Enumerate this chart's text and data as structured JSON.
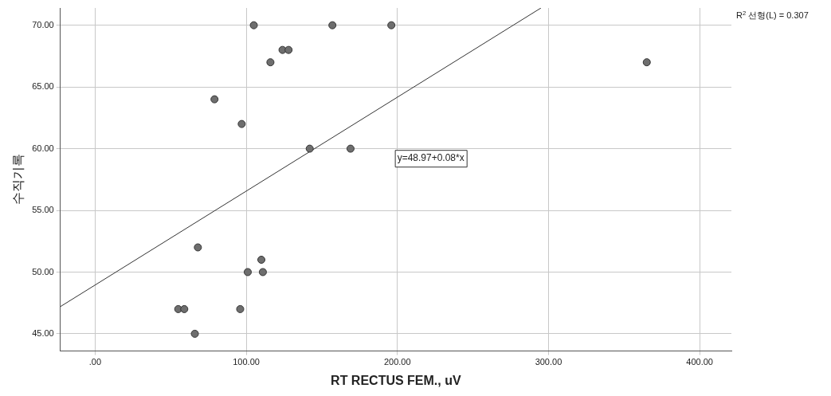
{
  "chart_data": {
    "type": "scatter",
    "xlabel": "RT RECTUS FEM., uV",
    "ylabel": "수직기록",
    "series": [
      {
        "color": "#6e6e6e",
        "marker": "circle",
        "x": [
          105,
          157,
          196,
          124,
          128,
          116,
          365,
          79,
          97,
          142,
          169,
          68,
          110,
          101,
          111,
          55,
          59,
          96,
          66
        ],
        "values": [
          70,
          70,
          70,
          68,
          68,
          67,
          67,
          64,
          62,
          60,
          60,
          52,
          51,
          50,
          50,
          47,
          47,
          47,
          45
        ]
      },
      {
        "type": "line",
        "color": "#333333",
        "x": [
          -23,
          295
        ],
        "values": [
          47.2,
          71.4
        ]
      }
    ],
    "xlim": [
      -23,
      421
    ],
    "ylim": [
      43.6,
      71.4
    ],
    "xticks": [
      {
        "value": 0,
        "label": ".00"
      },
      {
        "value": 100,
        "label": "100.00"
      },
      {
        "value": 200,
        "label": "200.00"
      },
      {
        "value": 300,
        "label": "300.00"
      },
      {
        "value": 400,
        "label": "400.00"
      }
    ],
    "yticks": [
      {
        "value": 45,
        "label": "45.00"
      },
      {
        "value": 50,
        "label": "50.00"
      },
      {
        "value": 55,
        "label": "55.00"
      },
      {
        "value": 60,
        "label": "60.00"
      },
      {
        "value": 65,
        "label": "65.00"
      },
      {
        "value": 70,
        "label": "70.00"
      }
    ],
    "grid": true,
    "line_style": "solid",
    "annotations": [
      "y=48.97+0.08*x",
      "R$^{2}$ 선형(L) = 0.307"
    ]
  }
}
